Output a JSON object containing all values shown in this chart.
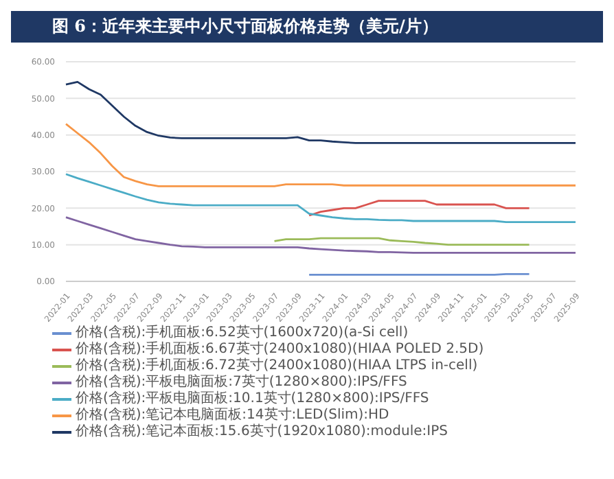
{
  "chart_data": {
    "type": "line",
    "title": "图 6：近年来主要中小尺寸面板价格走势（美元/片）",
    "categories": [
      "2022-01",
      null,
      "2022-03",
      null,
      "2022-05",
      null,
      "2022-07",
      null,
      "2022-09",
      null,
      "2022-11",
      null,
      "2023-01",
      null,
      "2023-03",
      null,
      "2023-05",
      null,
      "2023-07",
      null,
      "2023-09",
      null,
      "2023-11",
      null,
      "2024-01",
      null,
      "2024-03",
      null,
      "2024-05",
      null,
      "2024-07",
      null,
      "2024-09",
      null,
      "2024-11",
      null,
      "2025-01",
      null,
      "2025-03",
      null,
      "2025-05",
      null,
      "2025-07",
      null,
      "2025-09"
    ],
    "series": [
      {
        "name": "价格(含税):手机面板:6.52英寸(1600x720)(a-Si cell)",
        "color": "#6a8fd0",
        "values": [
          null,
          null,
          null,
          null,
          null,
          null,
          null,
          null,
          null,
          null,
          null,
          null,
          null,
          null,
          null,
          null,
          null,
          null,
          null,
          null,
          null,
          1.8,
          1.8,
          1.8,
          1.8,
          1.8,
          1.8,
          1.8,
          1.8,
          1.8,
          1.8,
          1.8,
          1.8,
          1.8,
          1.8,
          1.8,
          1.8,
          1.8,
          2.0,
          2.0,
          2.0,
          null,
          null,
          null,
          null
        ]
      },
      {
        "name": "价格(含税):手机面板:6.67英寸(2400x1080)(HIAA POLED 2.5D)",
        "color": "#d9534f",
        "values": [
          null,
          null,
          null,
          null,
          null,
          null,
          null,
          null,
          null,
          null,
          null,
          null,
          null,
          null,
          null,
          null,
          null,
          null,
          null,
          null,
          null,
          18,
          19,
          19.5,
          20,
          20,
          21,
          22,
          22,
          22,
          22,
          22,
          21,
          21,
          21,
          21,
          21,
          21,
          20,
          20,
          20,
          null,
          null,
          null,
          null
        ]
      },
      {
        "name": "价格(含税):手机面板:6.72英寸(2400x1080)(HIAA LTPS in-cell)",
        "color": "#9bbb59",
        "values": [
          null,
          null,
          null,
          null,
          null,
          null,
          null,
          null,
          null,
          null,
          null,
          null,
          null,
          null,
          null,
          null,
          null,
          null,
          11,
          11.5,
          11.5,
          11.5,
          11.8,
          11.8,
          11.8,
          11.8,
          11.8,
          11.8,
          11.2,
          11,
          10.8,
          10.5,
          10.3,
          10,
          10,
          10,
          10,
          10,
          10,
          10,
          10,
          null,
          null,
          null,
          null
        ]
      },
      {
        "name": "价格(含税):平板电脑面板:7英寸(1280×800):IPS/FFS",
        "color": "#8064a2",
        "values": [
          17.5,
          16.5,
          15.5,
          14.5,
          13.5,
          12.5,
          11.5,
          11,
          10.5,
          10,
          9.6,
          9.5,
          9.3,
          9.3,
          9.3,
          9.3,
          9.3,
          9.3,
          9.3,
          9.3,
          9.3,
          9,
          8.8,
          8.6,
          8.4,
          8.3,
          8.2,
          8,
          8,
          7.9,
          7.8,
          7.8,
          7.8,
          7.8,
          7.8,
          7.8,
          7.8,
          7.8,
          7.8,
          7.8,
          7.8,
          7.8,
          7.8,
          7.8,
          7.8
        ]
      },
      {
        "name": "价格(含税):平板电脑面板:10.1英寸(1280×800):IPS/FFS",
        "color": "#4bacc6",
        "values": [
          29.3,
          28.2,
          27.2,
          26.2,
          25.2,
          24.2,
          23.2,
          22.3,
          21.6,
          21.2,
          21,
          20.8,
          20.8,
          20.8,
          20.8,
          20.8,
          20.8,
          20.8,
          20.8,
          20.8,
          20.8,
          18.5,
          18,
          17.5,
          17.2,
          17,
          17,
          16.8,
          16.7,
          16.7,
          16.5,
          16.5,
          16.5,
          16.5,
          16.5,
          16.5,
          16.5,
          16.5,
          16.2,
          16.2,
          16.2,
          16.2,
          16.2,
          16.2,
          16.2
        ]
      },
      {
        "name": "价格(含税):笔记本电脑面板:14英寸:LED(Slim):HD",
        "color": "#f79646",
        "values": [
          43,
          40.5,
          38,
          35,
          31.5,
          28.5,
          27.4,
          26.5,
          26,
          26,
          26,
          26,
          26,
          26,
          26,
          26,
          26,
          26,
          26,
          26.5,
          26.5,
          26.5,
          26.5,
          26.5,
          26.2,
          26.2,
          26.2,
          26.2,
          26.2,
          26.2,
          26.2,
          26.2,
          26.2,
          26.2,
          26.2,
          26.2,
          26.2,
          26.2,
          26.2,
          26.2,
          26.2,
          26.2,
          26.2,
          26.2,
          26.2
        ]
      },
      {
        "name": "价格(含税):笔记本面板:15.6英寸(1920x1080):module:IPS",
        "color": "#1f3864",
        "values": [
          53.8,
          54.5,
          52.5,
          51,
          48,
          45,
          42.5,
          40.8,
          39.8,
          39.3,
          39.1,
          39.1,
          39.1,
          39.1,
          39.1,
          39.1,
          39.1,
          39.1,
          39.1,
          39.1,
          39.4,
          38.5,
          38.5,
          38.2,
          38,
          37.8,
          37.8,
          37.8,
          37.8,
          37.8,
          37.8,
          37.8,
          37.8,
          37.8,
          37.8,
          37.8,
          37.8,
          37.8,
          37.8,
          37.8,
          37.8,
          37.8,
          37.8,
          37.8,
          37.8
        ]
      }
    ],
    "ylim": [
      0,
      60
    ],
    "yticks": [
      {
        "value": 0,
        "label": "0.00"
      },
      {
        "value": 10,
        "label": "10.00"
      },
      {
        "value": 20,
        "label": "20.00"
      },
      {
        "value": 30,
        "label": "30.00"
      },
      {
        "value": 40,
        "label": "40.00"
      },
      {
        "value": 50,
        "label": "50.00"
      },
      {
        "value": 60,
        "label": "60.00"
      }
    ],
    "grid": "y",
    "legend": "bottom",
    "marker": "none",
    "line_style": "solid"
  }
}
